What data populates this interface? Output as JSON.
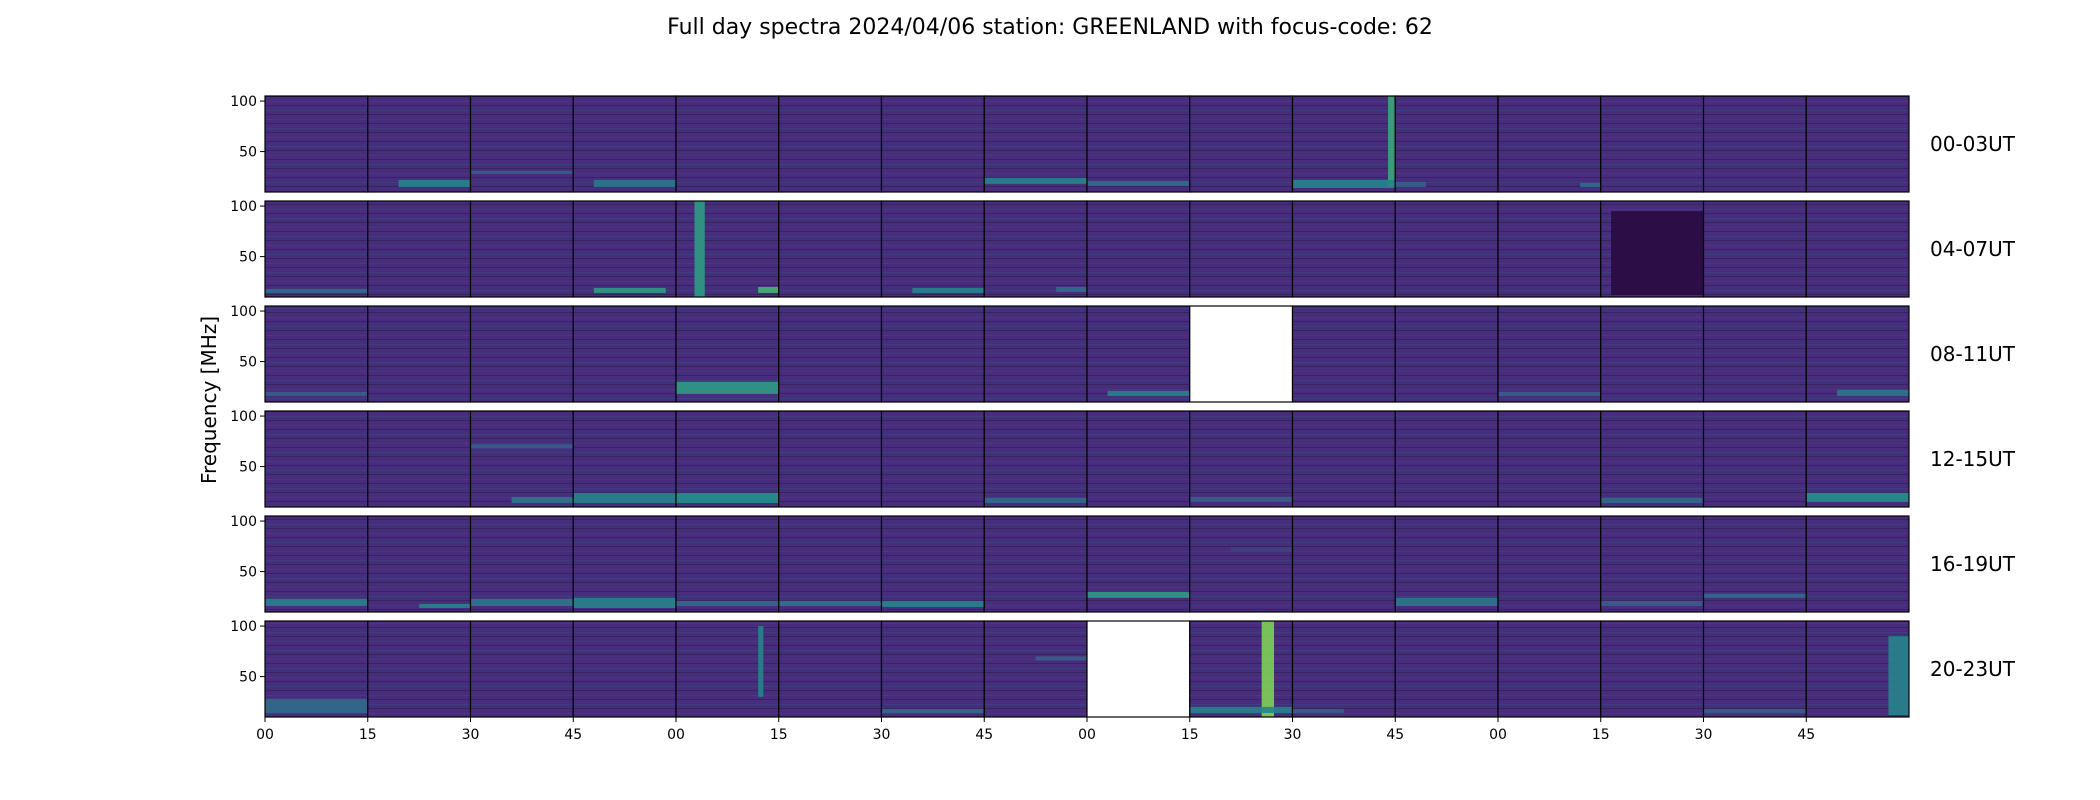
{
  "chart_data": {
    "type": "heatmap",
    "title": "Full day spectra 2024/04/06 station: GREENLAND with focus-code: 62",
    "ylabel": "Frequency [MHz]",
    "ylim": [
      10,
      105
    ],
    "y_ticks": [
      "50",
      "100"
    ],
    "x_ticks": [
      "00",
      "15",
      "30",
      "45",
      "00",
      "15",
      "30",
      "45",
      "00",
      "15",
      "30",
      "45",
      "00",
      "15",
      "30",
      "45"
    ],
    "colormap": [
      "#440154",
      "#3b528b",
      "#21918c",
      "#5ec962",
      "#fde725"
    ],
    "background_color": "#472d7b",
    "panels_per_row": 16,
    "rows": [
      {
        "label": "00-03UT",
        "empty_panels": [],
        "features": [
          {
            "panel": 1,
            "f_lo": 15,
            "f_hi": 22,
            "t_start": 0.3,
            "t_end": 1.0,
            "level": 0.45
          },
          {
            "panel": 2,
            "f_lo": 28,
            "f_hi": 31,
            "t_start": 0.0,
            "t_end": 1.0,
            "level": 0.3
          },
          {
            "panel": 3,
            "f_lo": 15,
            "f_hi": 22,
            "t_start": 0.2,
            "t_end": 1.0,
            "level": 0.4
          },
          {
            "panel": 7,
            "f_lo": 18,
            "f_hi": 24,
            "t_start": 0.0,
            "t_end": 1.0,
            "level": 0.45
          },
          {
            "panel": 8,
            "f_lo": 16,
            "f_hi": 21,
            "t_start": 0.0,
            "t_end": 1.0,
            "level": 0.35
          },
          {
            "panel": 10,
            "f_lo": 15,
            "f_hi": 105,
            "t_start": 0.93,
            "t_end": 1.0,
            "level": 0.6
          },
          {
            "panel": 10,
            "f_lo": 14,
            "f_hi": 22,
            "t_start": 0.0,
            "t_end": 1.0,
            "level": 0.45
          },
          {
            "panel": 11,
            "f_lo": 15,
            "f_hi": 20,
            "t_start": 0.0,
            "t_end": 0.3,
            "level": 0.3
          },
          {
            "panel": 12,
            "f_lo": 15,
            "f_hi": 19,
            "t_start": 0.8,
            "t_end": 1.0,
            "level": 0.35
          }
        ]
      },
      {
        "label": "04-07UT",
        "empty_panels": [],
        "features": [
          {
            "panel": 0,
            "f_lo": 14,
            "f_hi": 18,
            "t_start": 0.0,
            "t_end": 1.0,
            "level": 0.35
          },
          {
            "panel": 3,
            "f_lo": 14,
            "f_hi": 19,
            "t_start": 0.2,
            "t_end": 0.9,
            "level": 0.55
          },
          {
            "panel": 4,
            "f_lo": 10,
            "f_hi": 105,
            "t_start": 0.18,
            "t_end": 0.28,
            "level": 0.55
          },
          {
            "panel": 4,
            "f_lo": 14,
            "f_hi": 20,
            "t_start": 0.8,
            "t_end": 1.0,
            "level": 0.65
          },
          {
            "panel": 6,
            "f_lo": 14,
            "f_hi": 19,
            "t_start": 0.3,
            "t_end": 1.0,
            "level": 0.45
          },
          {
            "panel": 7,
            "f_lo": 15,
            "f_hi": 20,
            "t_start": 0.7,
            "t_end": 1.0,
            "level": 0.35
          },
          {
            "panel": 13,
            "f_lo": 12,
            "f_hi": 95,
            "t_start": 0.1,
            "t_end": 1.0,
            "level": -0.15
          }
        ]
      },
      {
        "label": "08-11UT",
        "empty_panels": [
          9
        ],
        "features": [
          {
            "panel": 0,
            "f_lo": 16,
            "f_hi": 20,
            "t_start": 0.0,
            "t_end": 1.0,
            "level": 0.3
          },
          {
            "panel": 4,
            "f_lo": 18,
            "f_hi": 30,
            "t_start": 0.0,
            "t_end": 1.0,
            "level": 0.55
          },
          {
            "panel": 8,
            "f_lo": 16,
            "f_hi": 21,
            "t_start": 0.2,
            "t_end": 1.0,
            "level": 0.45
          },
          {
            "panel": 12,
            "f_lo": 16,
            "f_hi": 20,
            "t_start": 0.0,
            "t_end": 1.0,
            "level": 0.3
          },
          {
            "panel": 15,
            "f_lo": 16,
            "f_hi": 22,
            "t_start": 0.3,
            "t_end": 1.0,
            "level": 0.4
          }
        ]
      },
      {
        "label": "12-15UT",
        "empty_panels": [],
        "features": [
          {
            "panel": 2,
            "f_lo": 68,
            "f_hi": 72,
            "t_start": 0.0,
            "t_end": 1.0,
            "level": 0.3
          },
          {
            "panel": 2,
            "f_lo": 14,
            "f_hi": 20,
            "t_start": 0.4,
            "t_end": 1.0,
            "level": 0.4
          },
          {
            "panel": 3,
            "f_lo": 14,
            "f_hi": 24,
            "t_start": 0.0,
            "t_end": 1.0,
            "level": 0.45
          },
          {
            "panel": 4,
            "f_lo": 14,
            "f_hi": 24,
            "t_start": 0.0,
            "t_end": 1.0,
            "level": 0.5
          },
          {
            "panel": 7,
            "f_lo": 14,
            "f_hi": 19,
            "t_start": 0.0,
            "t_end": 1.0,
            "level": 0.35
          },
          {
            "panel": 9,
            "f_lo": 15,
            "f_hi": 20,
            "t_start": 0.0,
            "t_end": 1.0,
            "level": 0.3
          },
          {
            "panel": 13,
            "f_lo": 14,
            "f_hi": 19,
            "t_start": 0.0,
            "t_end": 1.0,
            "level": 0.35
          },
          {
            "panel": 15,
            "f_lo": 15,
            "f_hi": 24,
            "t_start": 0.0,
            "t_end": 1.0,
            "level": 0.5
          }
        ]
      },
      {
        "label": "16-19UT",
        "empty_panels": [],
        "features": [
          {
            "panel": 0,
            "f_lo": 16,
            "f_hi": 23,
            "t_start": 0.0,
            "t_end": 1.0,
            "level": 0.45
          },
          {
            "panel": 1,
            "f_lo": 14,
            "f_hi": 18,
            "t_start": 0.5,
            "t_end": 1.0,
            "level": 0.45
          },
          {
            "panel": 2,
            "f_lo": 16,
            "f_hi": 23,
            "t_start": 0.0,
            "t_end": 1.0,
            "level": 0.4
          },
          {
            "panel": 3,
            "f_lo": 14,
            "f_hi": 24,
            "t_start": 0.0,
            "t_end": 1.0,
            "level": 0.45
          },
          {
            "panel": 4,
            "f_lo": 16,
            "f_hi": 21,
            "t_start": 0.0,
            "t_end": 1.0,
            "level": 0.35
          },
          {
            "panel": 5,
            "f_lo": 16,
            "f_hi": 21,
            "t_start": 0.0,
            "t_end": 1.0,
            "level": 0.4
          },
          {
            "panel": 6,
            "f_lo": 15,
            "f_hi": 21,
            "t_start": 0.0,
            "t_end": 1.0,
            "level": 0.45
          },
          {
            "panel": 8,
            "f_lo": 24,
            "f_hi": 30,
            "t_start": 0.0,
            "t_end": 1.0,
            "level": 0.55
          },
          {
            "panel": 9,
            "f_lo": 70,
            "f_hi": 74,
            "t_start": 0.4,
            "t_end": 1.0,
            "level": 0.2
          },
          {
            "panel": 11,
            "f_lo": 16,
            "f_hi": 24,
            "t_start": 0.0,
            "t_end": 1.0,
            "level": 0.4
          },
          {
            "panel": 13,
            "f_lo": 16,
            "f_hi": 21,
            "t_start": 0.0,
            "t_end": 1.0,
            "level": 0.3
          },
          {
            "panel": 14,
            "f_lo": 24,
            "f_hi": 28,
            "t_start": 0.0,
            "t_end": 1.0,
            "level": 0.35
          }
        ]
      },
      {
        "label": "20-23UT",
        "empty_panels": [
          8
        ],
        "features": [
          {
            "panel": 0,
            "f_lo": 14,
            "f_hi": 28,
            "t_start": 0.0,
            "t_end": 1.0,
            "level": 0.35
          },
          {
            "panel": 4,
            "f_lo": 30,
            "f_hi": 100,
            "t_start": 0.8,
            "t_end": 0.85,
            "level": 0.45
          },
          {
            "panel": 6,
            "f_lo": 14,
            "f_hi": 18,
            "t_start": 0.0,
            "t_end": 1.0,
            "level": 0.35
          },
          {
            "panel": 7,
            "f_lo": 66,
            "f_hi": 70,
            "t_start": 0.5,
            "t_end": 1.0,
            "level": 0.3
          },
          {
            "panel": 9,
            "f_lo": 10,
            "f_hi": 105,
            "t_start": 0.7,
            "t_end": 0.82,
            "level": 0.8
          },
          {
            "panel": 9,
            "f_lo": 14,
            "f_hi": 20,
            "t_start": 0.0,
            "t_end": 1.0,
            "level": 0.45
          },
          {
            "panel": 10,
            "f_lo": 14,
            "f_hi": 18,
            "t_start": 0.0,
            "t_end": 0.5,
            "level": 0.3
          },
          {
            "panel": 14,
            "f_lo": 14,
            "f_hi": 18,
            "t_start": 0.0,
            "t_end": 1.0,
            "level": 0.3
          },
          {
            "panel": 15,
            "f_lo": 12,
            "f_hi": 90,
            "t_start": 0.8,
            "t_end": 1.0,
            "level": 0.45
          }
        ]
      }
    ]
  }
}
